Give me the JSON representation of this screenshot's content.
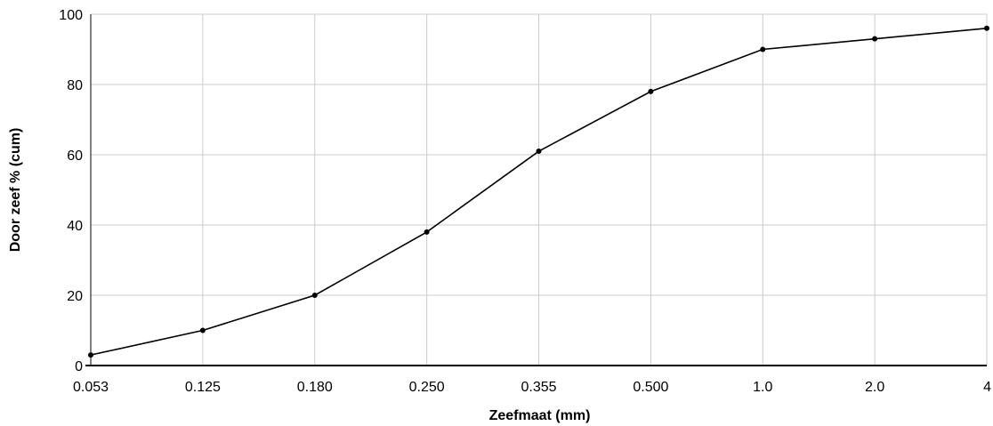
{
  "chart_data": {
    "type": "line",
    "title": "",
    "xlabel": "Zeefmaat (mm)",
    "ylabel": "Door zeef % (cum)",
    "categories": [
      "0.053",
      "0.125",
      "0.180",
      "0.250",
      "0.355",
      "0.500",
      "1.0",
      "2.0",
      "4"
    ],
    "series": [
      {
        "values": [
          3,
          10,
          20,
          38,
          61,
          78,
          90,
          93,
          96
        ],
        "color": "#000000"
      }
    ],
    "ylim": [
      0,
      100
    ],
    "yticks": [
      "0",
      "20",
      "40",
      "60",
      "80",
      "100"
    ],
    "grid": true,
    "legend": "none"
  }
}
